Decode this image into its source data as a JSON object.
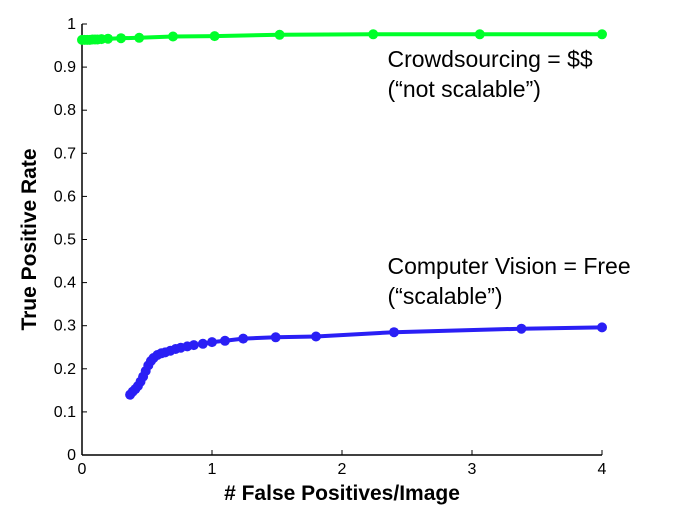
{
  "chart_data": {
    "type": "line",
    "xlabel": "# False Positives/Image",
    "ylabel": "True Positive Rate",
    "xlim": [
      0,
      4
    ],
    "ylim": [
      0,
      1
    ],
    "xticks": [
      "0",
      "1",
      "2",
      "3",
      "4"
    ],
    "yticks": [
      "0",
      "0.1",
      "0.2",
      "0.3",
      "0.4",
      "0.5",
      "0.6",
      "0.7",
      "0.8",
      "0.9",
      "1"
    ],
    "grid": false,
    "series": [
      {
        "color": "#00ff2a",
        "x": [
          0.0,
          0.02,
          0.04,
          0.06,
          0.08,
          0.1,
          0.12,
          0.15,
          0.2,
          0.3,
          0.44,
          0.7,
          1.02,
          1.52,
          2.24,
          3.06,
          4.0
        ],
        "y": [
          0.963,
          0.963,
          0.963,
          0.963,
          0.964,
          0.964,
          0.964,
          0.965,
          0.966,
          0.967,
          0.968,
          0.971,
          0.972,
          0.975,
          0.976,
          0.976,
          0.976
        ]
      },
      {
        "color": "#2a1ff5",
        "x": [
          0.37,
          0.39,
          0.41,
          0.43,
          0.45,
          0.47,
          0.49,
          0.51,
          0.53,
          0.55,
          0.58,
          0.61,
          0.64,
          0.68,
          0.72,
          0.76,
          0.81,
          0.86,
          0.93,
          1.0,
          1.1,
          1.24,
          1.49,
          1.8,
          2.4,
          3.38,
          4.0
        ],
        "y": [
          0.14,
          0.147,
          0.153,
          0.16,
          0.17,
          0.182,
          0.195,
          0.208,
          0.218,
          0.225,
          0.232,
          0.236,
          0.238,
          0.242,
          0.246,
          0.249,
          0.252,
          0.255,
          0.258,
          0.262,
          0.265,
          0.27,
          0.273,
          0.275,
          0.285,
          0.293,
          0.296
        ]
      }
    ],
    "annotations": [
      {
        "lines": [
          "Crowdsourcing = $$",
          "(“not scalable”)"
        ],
        "x": 2.35,
        "y": 0.9
      },
      {
        "lines": [
          "Computer Vision = Free",
          "(“scalable”)"
        ],
        "x": 2.35,
        "y": 0.42
      }
    ]
  }
}
